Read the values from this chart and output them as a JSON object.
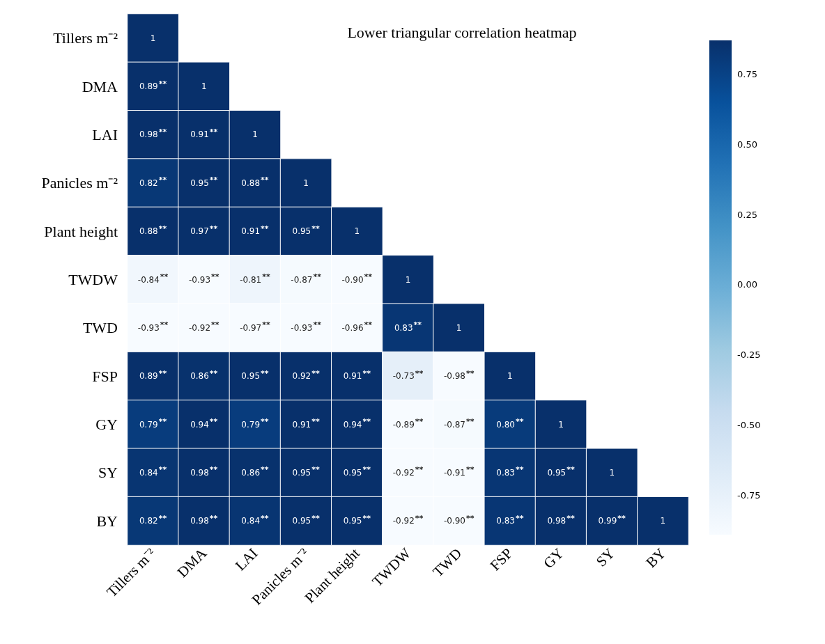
{
  "chart_data": {
    "type": "heatmap",
    "title": "Lower triangular correlation heatmap",
    "categories": [
      "Tillers m⁻²",
      "DMA",
      "LAI",
      "Panicles m⁻²",
      "Plant height",
      "TWDW",
      "TWD",
      "FSP",
      "GY",
      "SY",
      "BY"
    ],
    "y_categories": [
      "Tillers m⁻²",
      "DMA",
      "LAI",
      "Panicles m⁻²",
      "Plant height",
      "TWDW",
      "TWD",
      "FSP",
      "GY",
      "SY",
      "BY"
    ],
    "cells": [
      [
        1,
        null,
        null,
        null,
        null,
        null,
        null,
        null,
        null,
        null,
        null
      ],
      [
        0.89,
        1,
        null,
        null,
        null,
        null,
        null,
        null,
        null,
        null,
        null
      ],
      [
        0.98,
        0.91,
        1,
        null,
        null,
        null,
        null,
        null,
        null,
        null,
        null
      ],
      [
        0.82,
        0.95,
        0.88,
        1,
        null,
        null,
        null,
        null,
        null,
        null,
        null
      ],
      [
        0.88,
        0.97,
        0.91,
        0.95,
        1,
        null,
        null,
        null,
        null,
        null,
        null
      ],
      [
        -0.84,
        -0.93,
        -0.81,
        -0.87,
        -0.9,
        1,
        null,
        null,
        null,
        null,
        null
      ],
      [
        -0.93,
        -0.92,
        -0.97,
        -0.93,
        -0.96,
        0.83,
        1,
        null,
        null,
        null,
        null
      ],
      [
        0.89,
        0.86,
        0.95,
        0.92,
        0.91,
        -0.73,
        -0.98,
        1,
        null,
        null,
        null
      ],
      [
        0.79,
        0.94,
        0.79,
        0.91,
        0.94,
        -0.89,
        -0.87,
        0.8,
        1,
        null,
        null
      ],
      [
        0.84,
        0.98,
        0.86,
        0.95,
        0.95,
        -0.92,
        -0.91,
        0.83,
        0.95,
        1,
        null
      ],
      [
        0.82,
        0.98,
        0.84,
        0.95,
        0.95,
        -0.92,
        -0.9,
        0.83,
        0.98,
        0.99,
        1
      ]
    ],
    "cell_labels": [
      [
        "1",
        null,
        null,
        null,
        null,
        null,
        null,
        null,
        null,
        null,
        null
      ],
      [
        "0.89$^{**}$",
        "1",
        null,
        null,
        null,
        null,
        null,
        null,
        null,
        null,
        null
      ],
      [
        "0.98$^{**}$",
        "0.91$^{**}$",
        "1",
        null,
        null,
        null,
        null,
        null,
        null,
        null,
        null
      ],
      [
        "0.82$^{**}$",
        "0.95$^{**}$",
        "0.88$^{**}$",
        "1",
        null,
        null,
        null,
        null,
        null,
        null,
        null
      ],
      [
        "0.88$^{**}$",
        "0.97$^{**}$",
        "0.91$^{**}$",
        "0.95$^{**}$",
        "1",
        null,
        null,
        null,
        null,
        null,
        null
      ],
      [
        "-0.84$^{**}$",
        "-0.93$^{**}$",
        "-0.81$^{**}$",
        "-0.87$^{**}$",
        "-0.90$^{**}$",
        "1",
        null,
        null,
        null,
        null,
        null
      ],
      [
        "-0.93$^{**}$",
        "-0.92$^{**}$",
        "-0.97$^{**}$",
        "-0.93$^{**}$",
        "-0.96$^{**}$",
        "0.83$^{**}$",
        "1",
        null,
        null,
        null,
        null
      ],
      [
        "0.89$^{**}$",
        "0.86$^{**}$",
        "0.95$^{**}$",
        "0.92$^{**}$",
        "0.91$^{**}$",
        "-0.73$^{**}$",
        "-0.98$^{**}$",
        "1",
        null,
        null,
        null
      ],
      [
        "0.79$^{**}$",
        "0.94$^{**}$",
        "0.79$^{**}$",
        "0.91$^{**}$",
        "0.94$^{**}$",
        "-0.89$^{**}$",
        "-0.87$^{**}$",
        "0.80$^{**}$",
        "1",
        null,
        null
      ],
      [
        "0.84$^{**}$",
        "0.98$^{**}$",
        "0.86$^{**}$",
        "0.95$^{**}$",
        "0.95$^{**}$",
        "-0.92$^{**}$",
        "-0.91$^{**}$",
        "0.83$^{**}$",
        "0.95$^{**}$",
        "1",
        null
      ],
      [
        "0.82$^{**}$",
        "0.98$^{**}$",
        "0.84$^{**}$",
        "0.95$^{**}$",
        "0.95$^{**}$",
        "-0.92$^{**}$",
        "-0.90$^{**}$",
        "0.83$^{**}$",
        "0.98$^{**}$",
        "0.99$^{**}$",
        "1"
      ]
    ],
    "clim": [
      -0.89,
      0.87
    ],
    "cticks": [
      0.75,
      {
        "value": 0.5,
        "label": "0.50"
      },
      0.25,
      {
        "value": 0,
        "label": "0.00"
      },
      -0.25,
      {
        "value": -0.5,
        "label": "-0.50"
      },
      -0.75
    ]
  }
}
